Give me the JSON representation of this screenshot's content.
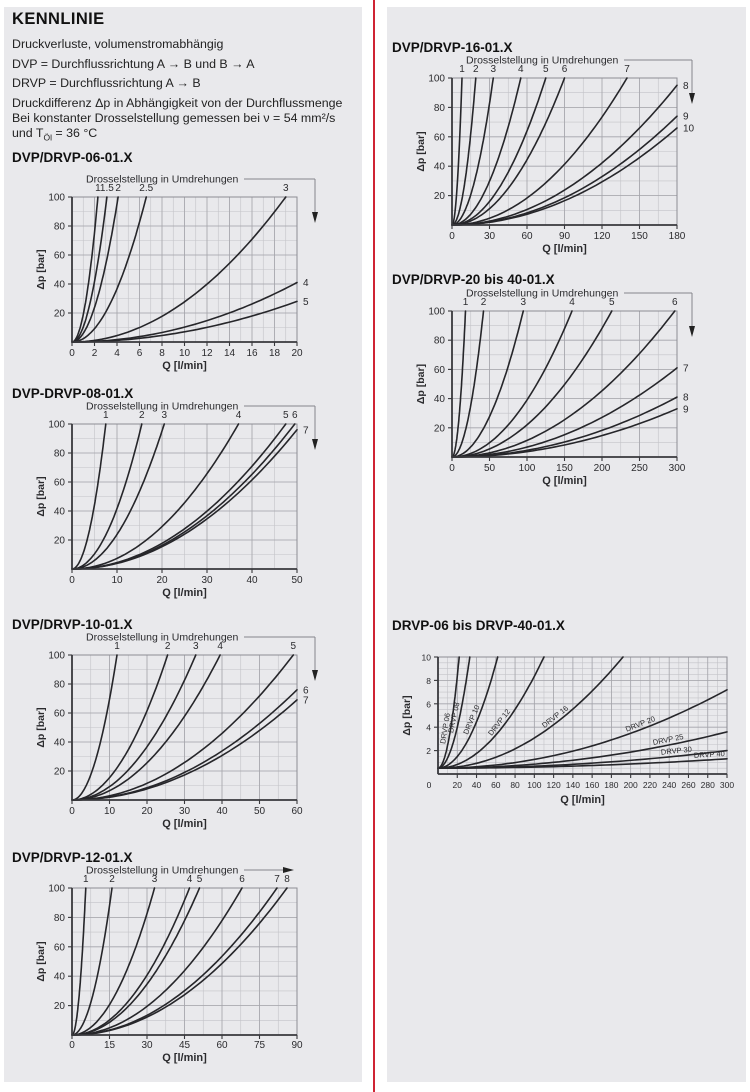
{
  "page": {
    "section_title": "KENNLINIE",
    "intro_lines": [
      [
        {
          "t": "Druckverluste, volumenstromabhängig"
        }
      ],
      [
        {
          "t": "DVP = Durchflussrichtung A → B und B → A"
        }
      ],
      [
        {
          "t": "DRVP = Durchflussrichtung A → B"
        }
      ],
      [
        {
          "t": "Druckdifferenz Δp in Abhängigkeit von der Durchflussmenge"
        }
      ],
      [
        {
          "t": "Bei konstanter Drosselstellung gemessen bei ν = 54 mm²/s"
        }
      ],
      [
        {
          "t": "und T"
        },
        {
          "sub": "Öl"
        },
        {
          "t": " = 36 °C"
        }
      ]
    ],
    "divider_color": "#cf2434"
  },
  "chart_data": [
    {
      "id": "dvp-drvp-06-01x",
      "title": "DVP/DRVP-06-01.X",
      "type": "line",
      "legend": "Drosselstellung in Umdrehungen",
      "legend_arrow": "down",
      "xlabel": "Q [l/min]",
      "ylabel": "Δp [bar]",
      "xlim": [
        0,
        20
      ],
      "ylim": [
        0,
        100
      ],
      "xticks": [
        0,
        2,
        4,
        6,
        8,
        10,
        12,
        14,
        16,
        18,
        20
      ],
      "yticks": [
        20,
        40,
        60,
        80,
        100
      ],
      "x_minor": 1,
      "y_minor": 10,
      "curve_start": 0,
      "grid": true,
      "curves": [
        {
          "label": "1",
          "end": [
            2.3,
            100
          ],
          "label_side": "top"
        },
        {
          "label": "1.5",
          "end": [
            3.1,
            100
          ],
          "label_side": "top"
        },
        {
          "label": "2",
          "end": [
            4.1,
            100
          ],
          "label_side": "top"
        },
        {
          "label": "2.5",
          "end": [
            6.6,
            100
          ],
          "label_side": "top"
        },
        {
          "label": "3",
          "end": [
            19,
            100
          ],
          "label_side": "top"
        },
        {
          "label": "4",
          "end": [
            20,
            41
          ],
          "label_side": "right"
        },
        {
          "label": "5",
          "end": [
            20,
            28
          ],
          "label_side": "right"
        }
      ]
    },
    {
      "id": "dvp-drvp-08-01x",
      "title": "DVP-DRVP-08-01.X",
      "type": "line",
      "legend": "Drosselstellung in Umdrehungen",
      "legend_arrow": "down",
      "xlabel": "Q [l/min]",
      "ylabel": "Δp [bar]",
      "xlim": [
        0,
        50
      ],
      "ylim": [
        0,
        100
      ],
      "xticks": [
        0,
        10,
        20,
        30,
        40,
        50
      ],
      "yticks": [
        20,
        40,
        60,
        80,
        100
      ],
      "x_minor": 5,
      "y_minor": 10,
      "curve_start": 0,
      "grid": true,
      "curves": [
        {
          "label": "1",
          "end": [
            7.5,
            100
          ],
          "label_side": "top"
        },
        {
          "label": "2",
          "end": [
            15.5,
            100
          ],
          "label_side": "top"
        },
        {
          "label": "3",
          "end": [
            20.5,
            100
          ],
          "label_side": "top"
        },
        {
          "label": "4",
          "end": [
            37,
            100
          ],
          "label_side": "top"
        },
        {
          "label": "5",
          "end": [
            47.5,
            100
          ],
          "label_side": "top"
        },
        {
          "label": "6",
          "end": [
            49.5,
            100
          ],
          "label_side": "top"
        },
        {
          "label": "7",
          "end": [
            50,
            96
          ],
          "label_side": "right"
        }
      ]
    },
    {
      "id": "dvp-drvp-10-01x",
      "title": "DVP/DRVP-10-01.X",
      "type": "line",
      "legend": "Drosselstellung in Umdrehungen",
      "legend_arrow": "down",
      "xlabel": "Q [l/min]",
      "ylabel": "Δp [bar]",
      "xlim": [
        0,
        60
      ],
      "ylim": [
        0,
        100
      ],
      "xticks": [
        0,
        10,
        20,
        30,
        40,
        50,
        60
      ],
      "yticks": [
        20,
        40,
        60,
        80,
        100
      ],
      "x_minor": 5,
      "y_minor": 10,
      "curve_start": 0,
      "grid": true,
      "curves": [
        {
          "label": "1",
          "end": [
            12,
            100
          ],
          "label_side": "top"
        },
        {
          "label": "2",
          "end": [
            25.5,
            100
          ],
          "label_side": "top"
        },
        {
          "label": "3",
          "end": [
            33,
            100
          ],
          "label_side": "top"
        },
        {
          "label": "4",
          "end": [
            39.5,
            100
          ],
          "label_side": "top"
        },
        {
          "label": "5",
          "end": [
            59,
            100
          ],
          "label_side": "top"
        },
        {
          "label": "6",
          "end": [
            60,
            76
          ],
          "label_side": "right"
        },
        {
          "label": "7",
          "end": [
            60,
            69
          ],
          "label_side": "right"
        }
      ]
    },
    {
      "id": "dvp-drvp-12-01x",
      "title": "DVP/DRVP-12-01.X",
      "type": "line",
      "legend": "Drosselstellung in Umdrehungen",
      "legend_arrow": "right",
      "xlabel": "Q [l/min]",
      "ylabel": "Δp [bar]",
      "xlim": [
        0,
        90
      ],
      "ylim": [
        0,
        100
      ],
      "xticks": [
        0,
        15,
        30,
        45,
        60,
        75,
        90
      ],
      "yticks": [
        20,
        40,
        60,
        80,
        100
      ],
      "x_minor": 7.5,
      "y_minor": 10,
      "curve_start": 0,
      "grid": true,
      "curves": [
        {
          "label": "1",
          "end": [
            5.5,
            100
          ],
          "label_side": "top"
        },
        {
          "label": "2",
          "end": [
            16,
            100
          ],
          "label_side": "top"
        },
        {
          "label": "3",
          "end": [
            33,
            100
          ],
          "label_side": "top"
        },
        {
          "label": "4",
          "end": [
            47,
            100
          ],
          "label_side": "top"
        },
        {
          "label": "5",
          "end": [
            51,
            100
          ],
          "label_side": "top"
        },
        {
          "label": "6",
          "end": [
            68,
            100
          ],
          "label_side": "top"
        },
        {
          "label": "7",
          "end": [
            82,
            100
          ],
          "label_side": "top"
        },
        {
          "label": "8",
          "end": [
            86,
            100
          ],
          "label_side": "top"
        }
      ]
    },
    {
      "id": "dvp-drvp-16-01x",
      "title": "DVP/DRVP-16-01.X",
      "type": "line",
      "legend": "Drosselstellung in Umdrehungen",
      "legend_arrow": "down",
      "xlabel": "Q [l/min]",
      "ylabel": "Δp [bar]",
      "xlim": [
        0,
        180
      ],
      "ylim": [
        0,
        100
      ],
      "xticks": [
        0,
        30,
        60,
        90,
        120,
        150,
        180
      ],
      "yticks": [
        20,
        40,
        60,
        80,
        100
      ],
      "x_minor": 15,
      "y_minor": 10,
      "curve_start": 0,
      "grid": true,
      "curves": [
        {
          "label": "1",
          "end": [
            8,
            100
          ],
          "label_side": "top"
        },
        {
          "label": "2",
          "end": [
            19,
            100
          ],
          "label_side": "top"
        },
        {
          "label": "3",
          "end": [
            33,
            100
          ],
          "label_side": "top"
        },
        {
          "label": "4",
          "end": [
            55,
            100
          ],
          "label_side": "top"
        },
        {
          "label": "5",
          "end": [
            75,
            100
          ],
          "label_side": "top"
        },
        {
          "label": "6",
          "end": [
            90,
            100
          ],
          "label_side": "top"
        },
        {
          "label": "7",
          "end": [
            140,
            100
          ],
          "label_side": "top"
        },
        {
          "label": "8",
          "end": [
            180,
            95
          ],
          "label_side": "right"
        },
        {
          "label": "9",
          "end": [
            180,
            74
          ],
          "label_side": "right"
        },
        {
          "label": "10",
          "end": [
            180,
            66
          ],
          "label_side": "right"
        }
      ]
    },
    {
      "id": "dvp-drvp-20-40-01x",
      "title": "DVP/DRVP-20 bis 40-01.X",
      "type": "line",
      "legend": "Drosselstellung in Umdrehungen",
      "legend_arrow": "down",
      "xlabel": "Q [l/min]",
      "ylabel": "Δp [bar]",
      "xlim": [
        0,
        300
      ],
      "ylim": [
        0,
        100
      ],
      "xticks": [
        0,
        50,
        100,
        150,
        200,
        250,
        300
      ],
      "yticks": [
        20,
        40,
        60,
        80,
        100
      ],
      "x_minor": 25,
      "y_minor": 10,
      "curve_start": 0,
      "grid": true,
      "curves": [
        {
          "label": "1",
          "end": [
            18,
            100
          ],
          "label_side": "top"
        },
        {
          "label": "2",
          "end": [
            42,
            100
          ],
          "label_side": "top"
        },
        {
          "label": "3",
          "end": [
            95,
            100
          ],
          "label_side": "top"
        },
        {
          "label": "4",
          "end": [
            160,
            100
          ],
          "label_side": "top"
        },
        {
          "label": "5",
          "end": [
            213,
            100
          ],
          "label_side": "top"
        },
        {
          "label": "6",
          "end": [
            297,
            100
          ],
          "label_side": "top"
        },
        {
          "label": "7",
          "end": [
            300,
            61
          ],
          "label_side": "right"
        },
        {
          "label": "8",
          "end": [
            300,
            41
          ],
          "label_side": "right"
        },
        {
          "label": "9",
          "end": [
            300,
            33
          ],
          "label_side": "right"
        }
      ]
    },
    {
      "id": "drvp-06-bis-40-01x",
      "title": "DRVP-06 bis DRVP-40-01.X",
      "type": "line",
      "legend": null,
      "legend_arrow": null,
      "xlabel": "Q [l/min]",
      "ylabel": "Δp [bar]",
      "xlim": [
        0,
        300
      ],
      "ylim": [
        0,
        10
      ],
      "origin_label": "0",
      "xticks": [
        20,
        40,
        60,
        80,
        100,
        120,
        140,
        160,
        180,
        200,
        220,
        240,
        260,
        280,
        300
      ],
      "yticks": [
        2,
        4,
        6,
        8,
        10
      ],
      "x_minor": 10,
      "y_minor": 0.5,
      "curve_start": 0.5,
      "grid": true,
      "curves": [
        {
          "label": "DRVP 06",
          "end": [
            22,
            10
          ],
          "label_side": "along",
          "label_at": 13
        },
        {
          "label": "DRVP 08",
          "end": [
            33,
            10
          ],
          "label_side": "along",
          "label_at": 22
        },
        {
          "label": "DRVP 10",
          "end": [
            62,
            10
          ],
          "label_side": "along",
          "label_at": 40
        },
        {
          "label": "DRVP 12",
          "end": [
            110,
            10
          ],
          "label_side": "along",
          "label_at": 68
        },
        {
          "label": "DRVP 16",
          "end": [
            192,
            10
          ],
          "label_side": "along",
          "label_at": 125
        },
        {
          "label": "DRVP 20",
          "end": [
            300,
            7.2
          ],
          "label_side": "along",
          "label_at": 212
        },
        {
          "label": "DRVP 25",
          "end": [
            300,
            3.6
          ],
          "label_side": "along",
          "label_at": 240
        },
        {
          "label": "DRVP 30",
          "end": [
            300,
            2.0
          ],
          "label_side": "along",
          "label_at": 248
        },
        {
          "label": "DRVP 40",
          "end": [
            300,
            1.3
          ],
          "label_side": "along",
          "label_at": 282
        }
      ]
    }
  ]
}
